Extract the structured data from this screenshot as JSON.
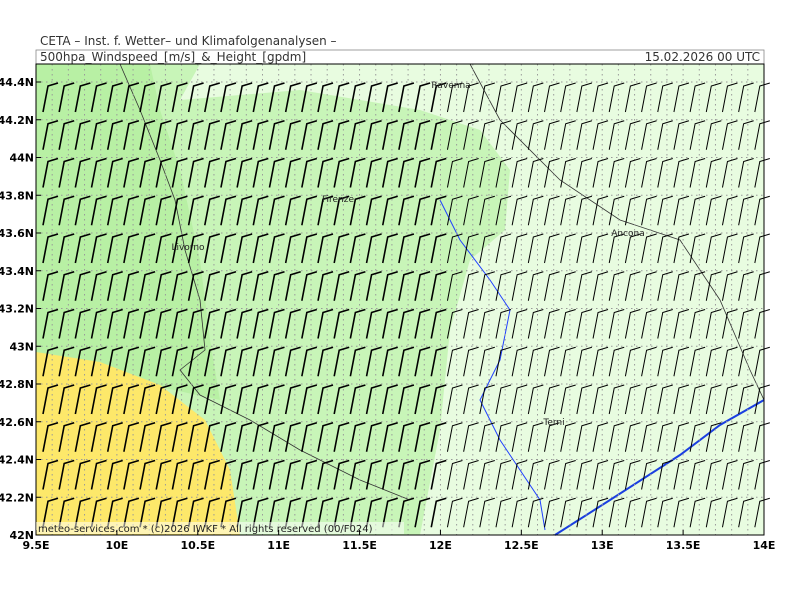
{
  "header": {
    "title": "CETA – Inst. f. Wetter– und Klimafolgenanalysen –",
    "subtitle": "500hpa_Windspeed_[m/s]_&_Height_[gpdm]",
    "date": "15.02.2026 00 UTC"
  },
  "axes": {
    "lat_labels": [
      "44.4N",
      "44.2N",
      "44N",
      "43.8N",
      "43.6N",
      "43.4N",
      "43.2N",
      "43N",
      "42.8N",
      "42.6N",
      "42.4N",
      "42.2N",
      "42N"
    ],
    "lon_labels": [
      "9.5E",
      "10E",
      "10.5E",
      "11E",
      "11.5E",
      "12E",
      "12.5E",
      "13E",
      "13.5E",
      "14E"
    ]
  },
  "cities": [
    "Ravenna",
    "Firenze",
    "Livorno",
    "Ancona",
    "Terni"
  ],
  "footer": "meteo-services.com * (c)2026 IWKF * All rights reserved (00/F024)"
}
